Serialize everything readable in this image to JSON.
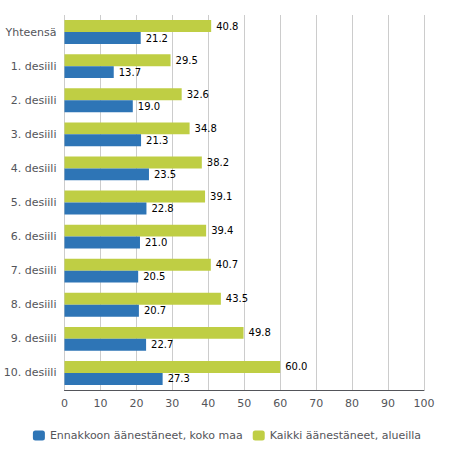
{
  "chart_data": {
    "type": "bar",
    "orientation": "horizontal",
    "categories": [
      "Yhteensä",
      "1. desiili",
      "2. desiili",
      "3. desiili",
      "4. desiili",
      "5. desiili",
      "6. desiili",
      "7. desiili",
      "8. desiili",
      "9. desiili",
      "10. desiili"
    ],
    "series": [
      {
        "name": "Ennakkoon äänestäneet, koko maa",
        "color": "#2E75B6",
        "values": [
          21.2,
          13.7,
          19.0,
          21.3,
          23.5,
          22.8,
          21.0,
          20.5,
          20.7,
          22.7,
          27.3
        ],
        "value_labels": [
          "21.2",
          "13.7",
          "19.0",
          "21.3",
          "23.5",
          "22.8",
          "21.0",
          "20.5",
          "20.7",
          "22.7",
          "27.3"
        ]
      },
      {
        "name": "Kaikki äänestäneet, alueilla",
        "color": "#BFCE44",
        "values": [
          40.8,
          29.5,
          32.6,
          34.8,
          38.2,
          39.1,
          39.4,
          40.7,
          43.5,
          49.8,
          60.0
        ],
        "value_labels": [
          "40.8",
          "29.5",
          "32.6",
          "34.8",
          "38.2",
          "39.1",
          "39.4",
          "40.7",
          "43.5",
          "49.8",
          "60.0"
        ]
      }
    ],
    "xlim": [
      0,
      100
    ],
    "xticks": [
      0,
      10,
      20,
      30,
      40,
      50,
      60,
      70,
      80,
      90,
      100
    ],
    "grid": true,
    "legend": "bottom",
    "data_labels": true
  }
}
